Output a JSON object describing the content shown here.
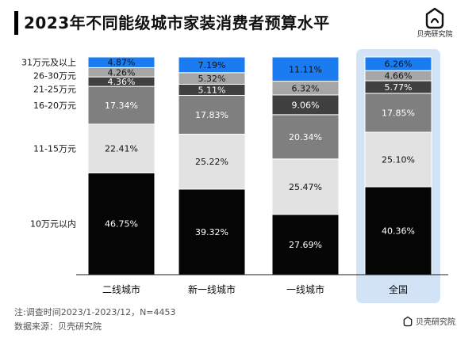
{
  "title": "2023年不同能级城市家装消费者预算水平",
  "brand": {
    "name": "贝壳研究院"
  },
  "footnotes": {
    "note": "注:调查时间2023/1-2023/12，N=4453",
    "source": "数据来源：贝壳研究院"
  },
  "colors": {
    "31万元及以上": "#1a7cf0",
    "26-30万元": "#a6a6a6",
    "21-25万元": "#404040",
    "16-20万元": "#7f7f7f",
    "11-15万元": "#e2e2e2",
    "10万元以内": "#050505",
    "highlight": "#d3e3f6"
  },
  "chart_data": {
    "type": "bar",
    "stacked": true,
    "ylim": [
      0,
      100
    ],
    "categories": [
      "二线城市",
      "新一线城市",
      "一线城市",
      "全国"
    ],
    "highlight_category": "全国",
    "series": [
      {
        "name": "10万元以内",
        "values": [
          46.75,
          39.32,
          27.69,
          40.36
        ],
        "labels": [
          "46.75%",
          "39.32%",
          "27.69%",
          "40.36%"
        ]
      },
      {
        "name": "11-15万元",
        "values": [
          22.41,
          25.22,
          25.47,
          25.1
        ],
        "labels": [
          "22.41%",
          "25.22%",
          "25.47%",
          "25.10%"
        ]
      },
      {
        "name": "16-20万元",
        "values": [
          17.34,
          17.83,
          20.34,
          17.85
        ],
        "labels": [
          "17.34%",
          "17.83%",
          "20.34%",
          "17.85%"
        ]
      },
      {
        "name": "21-25万元",
        "values": [
          4.36,
          5.11,
          9.06,
          5.77
        ],
        "labels": [
          "4.36%",
          "5.11%",
          "9.06%",
          "5.77%"
        ]
      },
      {
        "name": "26-30万元",
        "values": [
          4.26,
          5.32,
          6.32,
          4.66
        ],
        "labels": [
          "4.26%",
          "5.32%",
          "6.32%",
          "4.66%"
        ]
      },
      {
        "name": "31万元及以上",
        "values": [
          4.87,
          7.19,
          11.11,
          6.26
        ],
        "labels": [
          "4.87%",
          "7.19%",
          "11.11%",
          "6.26%"
        ]
      }
    ]
  }
}
